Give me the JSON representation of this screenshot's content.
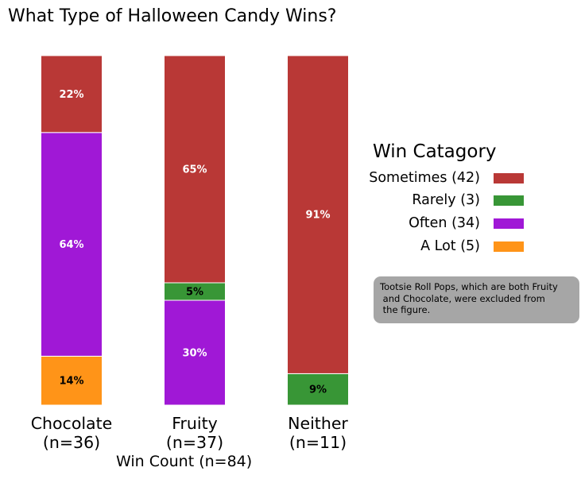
{
  "chart_data": {
    "type": "bar",
    "stacked": true,
    "title": "What Type of Halloween Candy Wins?",
    "xlabel": "Win Count (n=84)",
    "ylabel": "",
    "categories": [
      "Chocolate\n(n=36)",
      "Fruity\n(n=37)",
      "Neither\n(n=11)"
    ],
    "ylim": [
      0,
      100
    ],
    "series": [
      {
        "name": "A Lot (5)",
        "color": "#ff9418",
        "values": [
          14,
          0,
          0
        ],
        "labels": [
          "14%",
          "",
          ""
        ],
        "label_color": "#000000"
      },
      {
        "name": "Often (34)",
        "color": "#a018d6",
        "values": [
          64,
          30,
          0
        ],
        "labels": [
          "64%",
          "30%",
          ""
        ],
        "label_color": "#ffffff"
      },
      {
        "name": "Rarely (3)",
        "color": "#389636",
        "values": [
          0,
          5,
          9
        ],
        "labels": [
          "",
          "5%",
          "9%"
        ],
        "label_color": "#000000"
      },
      {
        "name": "Sometimes (42)",
        "color": "#b93836",
        "values": [
          22,
          65,
          91
        ],
        "labels": [
          "22%",
          "65%",
          "91%"
        ],
        "label_color": "#ffffff"
      }
    ],
    "legend": {
      "title": "Win Catagory",
      "placement": "right",
      "entries": [
        "Sometimes (42)",
        "Rarely (3)",
        "Often (34)",
        "A Lot (5)"
      ]
    },
    "grid": false
  },
  "annotation": {
    "text": "Tootsie Roll Pops, which are both Fruity\n and Chocolate, were excluded from\n the figure."
  }
}
